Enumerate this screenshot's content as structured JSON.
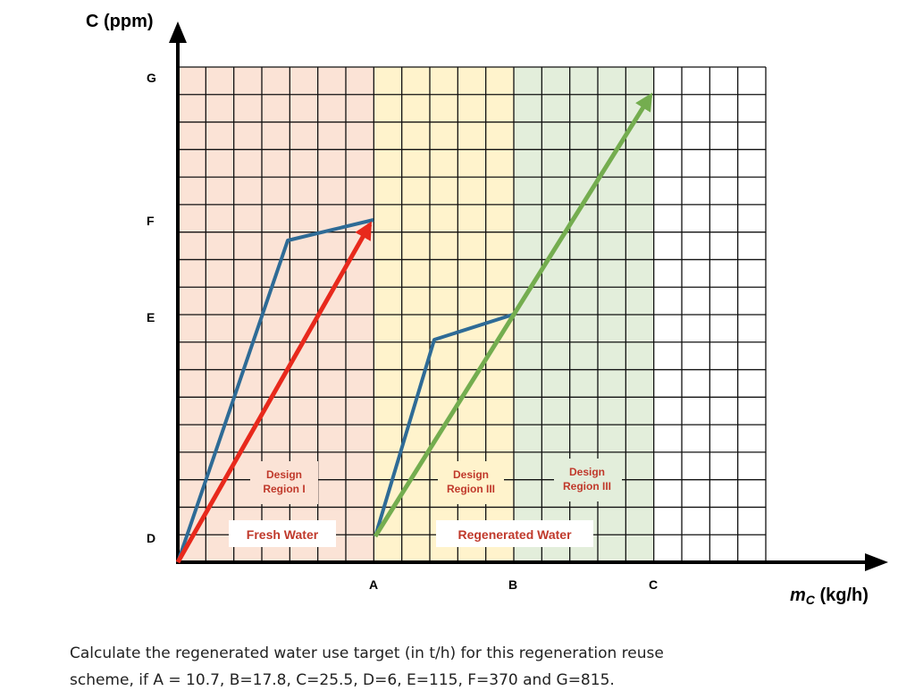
{
  "axes": {
    "y_label": "C (ppm)",
    "x_label_main": "m",
    "x_label_sub": "C",
    "x_label_unit": " (kg/h)",
    "y_ticks": [
      "G",
      "F",
      "E",
      "D"
    ],
    "x_ticks": [
      "A",
      "B",
      "C"
    ]
  },
  "regions": [
    {
      "label_line1": "Design",
      "label_line2": "Region I",
      "color": "#fbe3d6"
    },
    {
      "label_line1": "Design",
      "label_line2": "Region III",
      "color": "#fff3cc"
    },
    {
      "label_line1": "Design",
      "label_line2": "Region III",
      "color": "#e3eedb"
    }
  ],
  "water_labels": {
    "fresh": "Fresh Water",
    "regenerated": "Regenerated Water"
  },
  "colors": {
    "limiting_curve": "#2e6b96",
    "fresh_line": "#e8291c",
    "regen_line": "#74ad4f",
    "label_text": "#c0392b"
  },
  "question": {
    "line1": "Calculate the regenerated water use target (in t/h) for this regeneration reuse",
    "line2": "scheme, if A = 10.7, B=17.8, C=25.5, D=6, E=115, F=370 and G=815."
  }
}
